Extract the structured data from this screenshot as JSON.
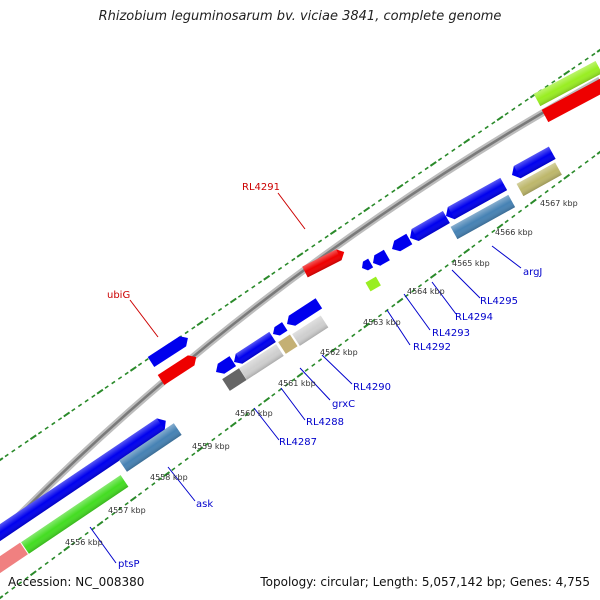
{
  "title": "Rhizobium leguminosarum bv. viciae 3841, complete genome",
  "footer": {
    "accession": "Accession: NC_008380",
    "info": "Topology: circular; Length: 5,057,142 bp; Genes: 4,755"
  },
  "colors": {
    "backbone": "#8a8a8a",
    "tick": "#2a8a2a",
    "cds_blue": "#0000ee",
    "red": "#ee0000",
    "green": "#44dd22",
    "lime": "#99ee22",
    "steel": "#4682b4",
    "olive": "#bdb76b",
    "pink": "#f08080",
    "gray": "#666666",
    "lightgray": "#cfcfcf",
    "tan": "#c4b074",
    "label_blue": "#0000cc",
    "label_red": "#cc0000"
  },
  "scale_labels": [
    "4556 kbp",
    "4557 kbp",
    "4558 kbp",
    "4559 kbp",
    "4560 kbp",
    "4561 kbp",
    "4562 kbp",
    "4563 kbp",
    "4564 kbp",
    "4565 kbp",
    "4566 kbp",
    "4567 kbp"
  ],
  "gene_labels": {
    "rl4291": "RL4291",
    "ubig": "ubiG",
    "argj": "argJ",
    "rl4295": "RL4295",
    "rl4294": "RL4294",
    "rl4293": "RL4293",
    "rl4292": "RL4292",
    "rl4290": "RL4290",
    "grxc": "grxC",
    "rl4288": "RL4288",
    "rl4287": "RL4287",
    "ask": "ask",
    "ptsp": "ptsP"
  }
}
